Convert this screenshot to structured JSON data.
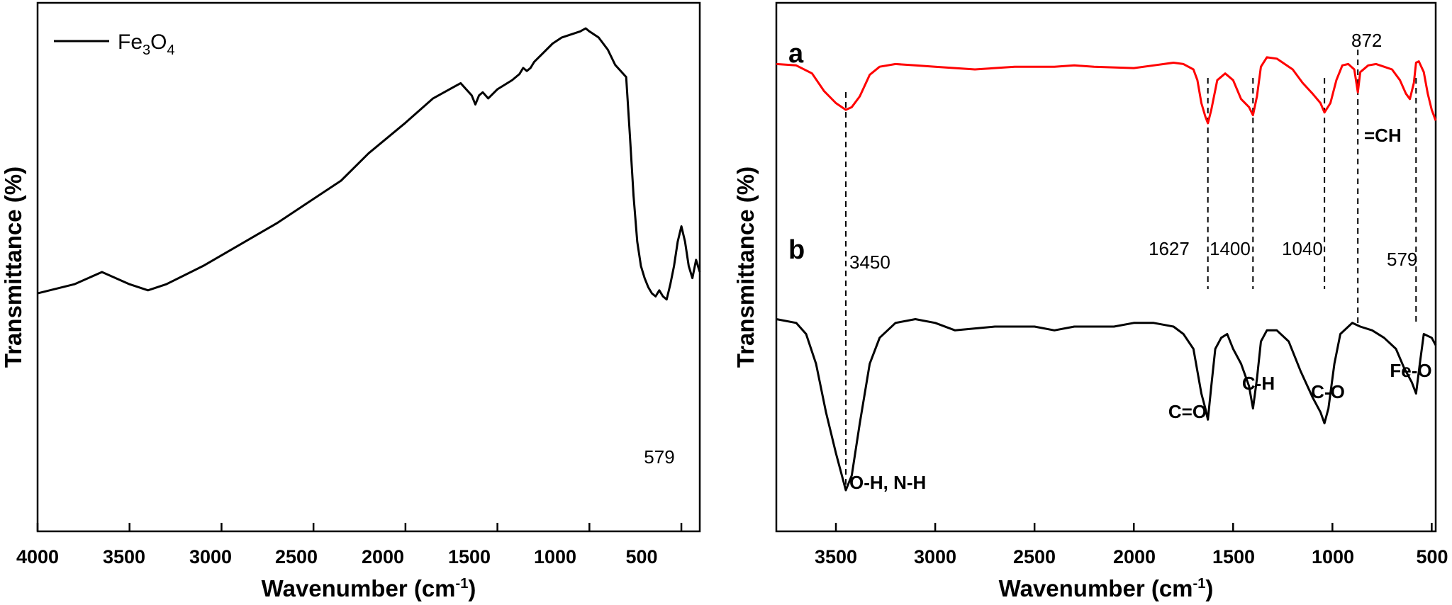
{
  "chart_data": [
    {
      "type": "line",
      "title": "",
      "xlabel": "Wavenumber",
      "xlabel_unit": "(cm-1)",
      "ylabel": "Transmittance (%)",
      "xlim": [
        4000,
        400
      ],
      "x_ticks": [
        4000,
        3500,
        3000,
        2500,
        2000,
        1500,
        1000,
        500
      ],
      "legend": {
        "label": "Fe3O4",
        "placement": "top-left",
        "color": "#000000"
      },
      "series": [
        {
          "name": "Fe3O4",
          "color": "#000000",
          "x": [
            4000,
            3800,
            3650,
            3500,
            3400,
            3300,
            3100,
            2900,
            2700,
            2500,
            2350,
            2200,
            2000,
            1850,
            1700,
            1640,
            1620,
            1600,
            1580,
            1550,
            1500,
            1420,
            1380,
            1360,
            1340,
            1320,
            1300,
            1200,
            1150,
            1050,
            1020,
            1000,
            950,
            900,
            860,
            800,
            780,
            760,
            740,
            720,
            700,
            680,
            660,
            640,
            620,
            600,
            580,
            560,
            540,
            520,
            500,
            480,
            460,
            440,
            420,
            400
          ],
          "y": [
            0.13,
            0.16,
            0.2,
            0.16,
            0.14,
            0.16,
            0.22,
            0.29,
            0.36,
            0.44,
            0.5,
            0.59,
            0.69,
            0.77,
            0.82,
            0.78,
            0.75,
            0.78,
            0.79,
            0.77,
            0.8,
            0.83,
            0.85,
            0.87,
            0.86,
            0.87,
            0.89,
            0.95,
            0.97,
            0.99,
            1.0,
            0.99,
            0.97,
            0.93,
            0.88,
            0.84,
            0.65,
            0.45,
            0.3,
            0.22,
            0.18,
            0.15,
            0.13,
            0.12,
            0.14,
            0.12,
            0.11,
            0.16,
            0.22,
            0.3,
            0.35,
            0.3,
            0.22,
            0.18,
            0.24,
            0.2
          ]
        }
      ],
      "annotations": [
        {
          "x": 579,
          "text": "579"
        }
      ]
    },
    {
      "type": "line",
      "title": "",
      "xlabel": "Wavenumber",
      "xlabel_unit": "(cm-1)",
      "ylabel": "Transmittance (%)",
      "xlim": [
        3800,
        480
      ],
      "x_ticks": [
        3500,
        3000,
        2500,
        2000,
        1500,
        1000,
        500
      ],
      "series": [
        {
          "name": "a",
          "color": "#ff0000",
          "x": [
            3800,
            3700,
            3620,
            3560,
            3500,
            3470,
            3450,
            3420,
            3380,
            3330,
            3280,
            3200,
            3100,
            3000,
            2800,
            2600,
            2400,
            2300,
            2200,
            2000,
            1900,
            1800,
            1750,
            1700,
            1680,
            1660,
            1640,
            1627,
            1610,
            1580,
            1540,
            1500,
            1460,
            1420,
            1400,
            1380,
            1360,
            1330,
            1280,
            1200,
            1150,
            1100,
            1060,
            1040,
            1010,
            980,
            950,
            920,
            890,
            872,
            860,
            820,
            780,
            740,
            700,
            660,
            630,
            610,
            590,
            579,
            565,
            540,
            520,
            500,
            480
          ],
          "y": [
            0.84,
            0.83,
            0.77,
            0.64,
            0.55,
            0.52,
            0.5,
            0.52,
            0.6,
            0.76,
            0.82,
            0.84,
            0.83,
            0.82,
            0.8,
            0.82,
            0.82,
            0.83,
            0.82,
            0.81,
            0.83,
            0.85,
            0.84,
            0.8,
            0.72,
            0.55,
            0.45,
            0.4,
            0.5,
            0.72,
            0.77,
            0.72,
            0.58,
            0.52,
            0.46,
            0.6,
            0.82,
            0.89,
            0.88,
            0.8,
            0.7,
            0.62,
            0.55,
            0.48,
            0.55,
            0.72,
            0.83,
            0.84,
            0.8,
            0.63,
            0.78,
            0.83,
            0.84,
            0.82,
            0.8,
            0.72,
            0.62,
            0.58,
            0.7,
            0.85,
            0.86,
            0.78,
            0.62,
            0.5,
            0.42
          ]
        },
        {
          "name": "b",
          "color": "#000000",
          "x": [
            3800,
            3700,
            3650,
            3600,
            3550,
            3500,
            3460,
            3450,
            3420,
            3380,
            3330,
            3280,
            3200,
            3100,
            3000,
            2900,
            2700,
            2500,
            2400,
            2300,
            2100,
            2000,
            1900,
            1800,
            1750,
            1700,
            1680,
            1660,
            1640,
            1627,
            1610,
            1590,
            1560,
            1530,
            1500,
            1460,
            1420,
            1400,
            1380,
            1360,
            1330,
            1280,
            1220,
            1160,
            1100,
            1060,
            1040,
            1020,
            990,
            960,
            900,
            860,
            800,
            740,
            680,
            640,
            600,
            579,
            560,
            540,
            500,
            480
          ],
          "y": [
            0.38,
            0.37,
            0.34,
            0.26,
            0.13,
            0.02,
            -0.06,
            -0.08,
            -0.04,
            0.1,
            0.26,
            0.33,
            0.37,
            0.38,
            0.37,
            0.35,
            0.36,
            0.36,
            0.35,
            0.36,
            0.36,
            0.37,
            0.37,
            0.36,
            0.34,
            0.3,
            0.24,
            0.18,
            0.14,
            0.11,
            0.2,
            0.3,
            0.33,
            0.34,
            0.3,
            0.26,
            0.2,
            0.14,
            0.22,
            0.32,
            0.35,
            0.35,
            0.32,
            0.24,
            0.17,
            0.13,
            0.1,
            0.14,
            0.26,
            0.34,
            0.37,
            0.36,
            0.35,
            0.33,
            0.3,
            0.25,
            0.21,
            0.18,
            0.26,
            0.34,
            0.33,
            0.31
          ]
        }
      ],
      "panel_labels": [
        "a",
        "b"
      ],
      "vlines_at": [
        3450,
        1627,
        1400,
        1040,
        872,
        579
      ],
      "peak_labels": [
        "3450",
        "1627",
        "1400",
        "1040",
        "872",
        "579"
      ],
      "band_labels": [
        "O-H, N-H",
        "C=O",
        "C-H",
        "C-O",
        "=CH",
        "Fe-O"
      ]
    }
  ],
  "left_axis": {
    "tick_labels": [
      "4000",
      "3500",
      "3000",
      "2500",
      "2000",
      "1500",
      "1000",
      "500"
    ],
    "ylabel": "Transmittance (%)",
    "xlabel": "Wavenumber (cm",
    "xlabel_sup": "-1",
    "xlabel_close": ")"
  },
  "left_legend": {
    "base": "Fe",
    "sub1": "3",
    "mid": "O",
    "sub2": "4"
  },
  "left_peak": "579",
  "right_axis": {
    "tick_labels": [
      "3500",
      "3000",
      "2500",
      "2000",
      "1500",
      "1000",
      "500"
    ],
    "ylabel": "Transmittance (%)",
    "xlabel": "Wavenumber (cm",
    "xlabel_sup": "-1",
    "xlabel_close": ")"
  },
  "right_labels": {
    "panel_a": "a",
    "panel_b": "b",
    "p3450": "3450",
    "p1627": "1627",
    "p1400": "1400",
    "p1040": "1040",
    "p872": "872",
    "p579": "579",
    "oh": "O-H, N-H",
    "co_double": "C=O",
    "ch": "C-H",
    "co": "C-O",
    "eq_ch": "=CH",
    "feo": "Fe-O"
  }
}
